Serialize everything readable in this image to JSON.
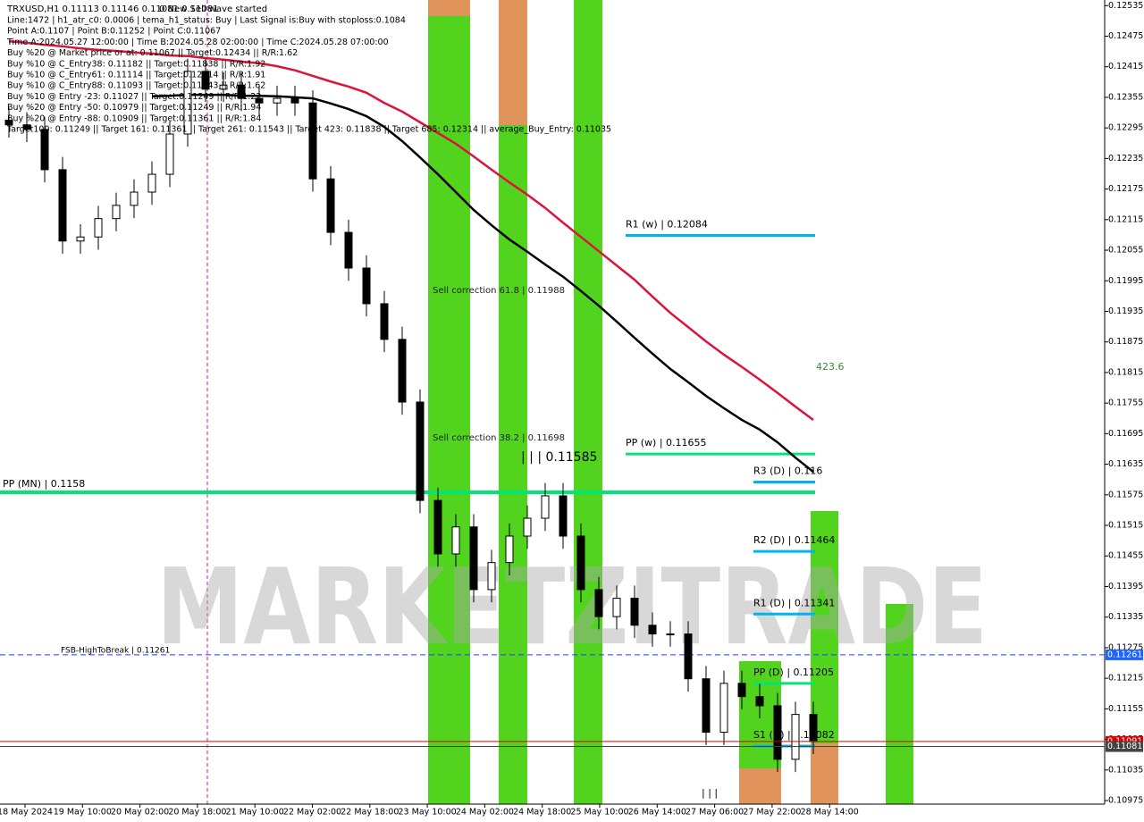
{
  "header": {
    "title": "TRXUSD,H1  0.11113 0.11146 0.11081 0.11081",
    "status": "0 New Sell wave started",
    "lines": [
      "Line:1472 | h1_atr_c0: 0.0006 | tema_h1_status: Buy | Last Signal is:Buy with stoploss:0.1084",
      "Point A:0.1107 | Point B:0.11252 | Point C:0.11067",
      "Time A:2024.05.27 12:00:00 | Time B:2024.05.28 02:00:00 | Time C:2024.05.28 07:00:00",
      "Buy %20 @ Market price or at: 0.11067 || Target:0.12434 || R/R:1.62",
      "Buy %10 @ C_Entry38: 0.11182 || Target:0.11838 || R/R:1.92",
      "Buy %10 @ C_Entry61: 0.11114 || Target:0.12314 || R/R:1.91",
      "Buy %10 @ C_Entry88: 0.11093 || Target:0.11543 || R/R:1.62",
      "Buy %10 @ Entry -23: 0.11027 || Target:0.11249 || R/R:1.22",
      "Buy %20 @ Entry -50: 0.10979 || Target:0.11249 || R/R:1.94",
      "Buy %20 @ Entry -88: 0.10909 || Target:0.11361 || R/R:1.84",
      "Target100: 0.11249 || Target 161: 0.11361 || Target 261: 0.11543 || Target 423: 0.11838 || Target 685: 0.12314 || average_Buy_Entry: 0.11035"
    ]
  },
  "chart_data": {
    "type": "candlestick",
    "watermark": "MARKETZITRADE",
    "up_color": "#ffffff",
    "down_color": "#000000",
    "open": [
      0.1231,
      0.12301,
      0.12292,
      0.12213,
      0.12073,
      0.12081,
      0.12117,
      0.12143,
      0.12169,
      0.12204,
      0.12283,
      0.12406,
      0.12371,
      0.12379,
      0.12353,
      0.12344,
      0.12353,
      0.12344,
      0.12195,
      0.1209,
      0.1202,
      0.1195,
      0.1188,
      0.11757,
      0.11564,
      0.11459,
      0.11512,
      0.11389,
      0.11442,
      0.11494,
      0.11529,
      0.11573,
      0.11494,
      0.11389,
      0.11336,
      0.11372,
      0.11319,
      0.11302,
      0.11302,
      0.11214,
      0.11109,
      0.11205,
      0.11179,
      0.11161,
      0.11056,
      0.11144
    ],
    "high": [
      0.12335,
      0.12326,
      0.12317,
      0.12238,
      0.12106,
      0.12142,
      0.12168,
      0.12194,
      0.12229,
      0.12308,
      0.12431,
      0.12431,
      0.12404,
      0.12404,
      0.12378,
      0.12378,
      0.12378,
      0.12369,
      0.1222,
      0.12115,
      0.12045,
      0.11975,
      0.11905,
      0.11782,
      0.11589,
      0.11537,
      0.11537,
      0.11467,
      0.11519,
      0.11554,
      0.11598,
      0.11598,
      0.11519,
      0.11414,
      0.11397,
      0.11397,
      0.11344,
      0.11327,
      0.11327,
      0.11239,
      0.1123,
      0.1123,
      0.11204,
      0.11186,
      0.11169,
      0.11169
    ],
    "low": [
      0.12276,
      0.12267,
      0.12188,
      0.12048,
      0.12048,
      0.12056,
      0.12092,
      0.12118,
      0.12144,
      0.12179,
      0.12258,
      0.12346,
      0.12346,
      0.12328,
      0.12319,
      0.12319,
      0.12319,
      0.1217,
      0.12065,
      0.11995,
      0.11925,
      0.11855,
      0.11732,
      0.11539,
      0.11434,
      0.11434,
      0.11364,
      0.11364,
      0.11417,
      0.11469,
      0.11504,
      0.11469,
      0.11364,
      0.11311,
      0.11311,
      0.11294,
      0.11277,
      0.11277,
      0.11189,
      0.11084,
      0.11084,
      0.11154,
      0.11136,
      0.11031,
      0.11031,
      0.11066
    ],
    "close": [
      0.12301,
      0.12292,
      0.12213,
      0.12073,
      0.12081,
      0.12117,
      0.12143,
      0.12169,
      0.12204,
      0.12283,
      0.12406,
      0.12371,
      0.12379,
      0.12353,
      0.12344,
      0.12353,
      0.12344,
      0.12195,
      0.1209,
      0.1202,
      0.1195,
      0.1188,
      0.11757,
      0.11564,
      0.11459,
      0.11512,
      0.11389,
      0.11442,
      0.11494,
      0.11529,
      0.11573,
      0.11494,
      0.11389,
      0.11336,
      0.11372,
      0.11319,
      0.11302,
      0.11302,
      0.11214,
      0.11109,
      0.11205,
      0.11179,
      0.11161,
      0.11056,
      0.11144,
      0.11091
    ],
    "moving_averages": [
      {
        "color": "#dc143c",
        "values": [
          0.12465,
          0.12462,
          0.12458,
          0.12455,
          0.12451,
          0.12448,
          0.12446,
          0.12443,
          0.12441,
          0.12437,
          0.12436,
          0.12432,
          0.12429,
          0.12425,
          0.12422,
          0.12416,
          0.12408,
          0.12397,
          0.12386,
          0.12376,
          0.12364,
          0.12344,
          0.12327,
          0.12306,
          0.12285,
          0.12264,
          0.12239,
          0.12213,
          0.12188,
          0.12164,
          0.12138,
          0.12109,
          0.12081,
          0.12053,
          0.12025,
          0.11997,
          0.11964,
          0.11932,
          0.11904,
          0.11876,
          0.1185,
          0.11826,
          0.11801,
          0.11775,
          0.11748,
          0.11722
        ]
      },
      {
        "color": "#000000",
        "values": [
          null,
          null,
          null,
          null,
          null,
          null,
          null,
          null,
          0.12357,
          0.12358,
          0.1236,
          0.1236,
          0.1236,
          0.12358,
          0.12358,
          0.12357,
          0.12355,
          0.12353,
          0.12343,
          0.12332,
          0.12318,
          0.12297,
          0.12269,
          0.12237,
          0.12204,
          0.12169,
          0.12134,
          0.12104,
          0.12076,
          0.12052,
          0.12027,
          0.12003,
          0.11975,
          0.11946,
          0.11915,
          0.11883,
          0.11852,
          0.11822,
          0.11796,
          0.11769,
          0.11745,
          0.11722,
          0.11703,
          0.11678,
          0.11648,
          0.1162
        ]
      }
    ],
    "ylim": [
      0.10968,
      0.12546
    ],
    "yticks": [
      0.12535,
      0.12475,
      0.12415,
      0.12355,
      0.12295,
      0.12235,
      0.12175,
      0.12115,
      0.12055,
      0.11995,
      0.11935,
      0.11875,
      0.11815,
      0.11755,
      0.11695,
      0.11635,
      0.11575,
      0.11515,
      0.11455,
      0.11395,
      0.11335,
      0.11275,
      0.11215,
      0.11155,
      0.11095,
      0.11035,
      0.10975
    ],
    "xlabels": [
      "18 May 2024",
      "19 May 10:00",
      "20 May 02:00",
      "20 May 18:00",
      "21 May 10:00",
      "22 May 02:00",
      "22 May 18:00",
      "23 May 10:00",
      "24 May 02:00",
      "24 May 18:00",
      "25 May 10:00",
      "26 May 14:00",
      "27 May 06:00",
      "27 May 22:00",
      "28 May 14:00"
    ],
    "full_levels": [
      {
        "label": "PP (MN) | 0.1158",
        "value": 0.1158,
        "color": "#00e676"
      },
      {
        "label": "FSB-HighToBreak | 0.11261",
        "value": 0.11261,
        "color": "#1e3cff"
      }
    ],
    "weekly_levels": [
      {
        "label": "R1 (w) | 0.12084",
        "value": 0.12084,
        "color": "#00b4f0"
      },
      {
        "label": "PP (w) | 0.11655",
        "value": 0.11655,
        "color": "#00e676"
      }
    ],
    "daily_levels": [
      {
        "label": "R3 (D) | 0.116",
        "value": 0.116,
        "color": "#00b4f0"
      },
      {
        "label": "R2 (D) | 0.11464",
        "value": 0.11464,
        "color": "#00b4f0"
      },
      {
        "label": "R1 (D) | 0.11341",
        "value": 0.11341,
        "color": "#00b4f0"
      },
      {
        "label": "PP (D) | 0.11205",
        "value": 0.11205,
        "color": "#00e676"
      },
      {
        "label": "S1 (D) | 0.11082",
        "value": 0.11082,
        "color": "#00b4f0"
      }
    ],
    "annotations": [
      "Sell correction 61.8 | 0.11988",
      "Sell correction 38.2 | 0.11698",
      "| | | 0.11585",
      "423.6",
      "| | |"
    ],
    "price_tags": [
      {
        "value": 0.11261,
        "color": "#1e64ff"
      },
      {
        "value": 0.11091,
        "color": "#e00000"
      },
      {
        "value": 0.11081,
        "color": "#444444"
      }
    ]
  }
}
